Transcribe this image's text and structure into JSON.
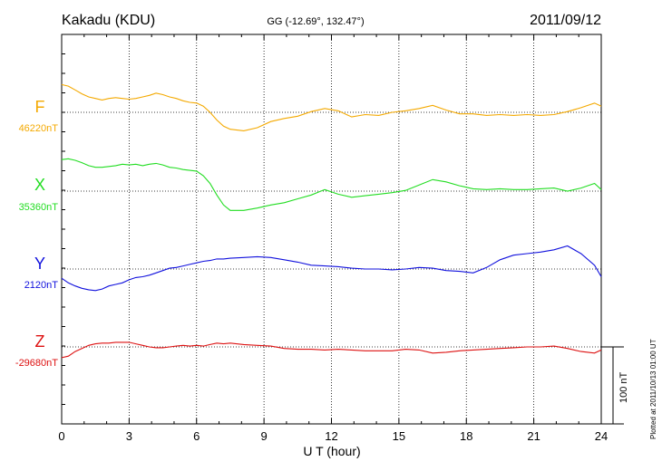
{
  "header": {
    "station": "Kakadu (KDU)",
    "coords": "GG (-12.69°, 132.47°)",
    "date": "2011/09/12"
  },
  "footer": {
    "plotted": "Plotted at 2011/10/13 01:00 UT"
  },
  "chart_data": {
    "type": "line",
    "title": "Kakadu (KDU)",
    "xlabel": "U T (hour)",
    "ylabel": "",
    "xlim": [
      0,
      24
    ],
    "xticks": [
      "0",
      "3",
      "6",
      "9",
      "12",
      "15",
      "18",
      "21",
      "24"
    ],
    "grid": true,
    "scale_bar": {
      "label": "100 nT",
      "value_nT": 100
    },
    "series": [
      {
        "name": "F",
        "baseline_label": "46220nT",
        "color": "#f4a900",
        "x": [
          0,
          0.3,
          0.6,
          0.9,
          1.2,
          1.5,
          1.8,
          2.1,
          2.4,
          2.7,
          3.0,
          3.3,
          3.6,
          3.9,
          4.2,
          4.5,
          4.8,
          5.1,
          5.4,
          5.7,
          6.0,
          6.3,
          6.6,
          6.9,
          7.2,
          7.5,
          8.1,
          8.7,
          9.3,
          9.9,
          10.5,
          11.1,
          11.7,
          12.3,
          12.9,
          13.5,
          14.1,
          14.7,
          15.3,
          15.9,
          16.5,
          17.1,
          17.7,
          18.3,
          18.9,
          19.5,
          20.1,
          20.7,
          21.3,
          21.9,
          22.5,
          23.1,
          23.7,
          24.0
        ],
        "values": [
          36,
          34,
          29,
          24,
          20,
          18,
          16,
          18,
          19,
          18,
          17,
          18,
          20,
          22,
          25,
          23,
          20,
          18,
          15,
          13,
          12,
          8,
          0,
          -10,
          -18,
          -22,
          -24,
          -20,
          -12,
          -8,
          -5,
          1,
          5,
          2,
          -6,
          -3,
          -4,
          0,
          2,
          5,
          9,
          3,
          -2,
          -2,
          -4,
          -3,
          -4,
          -3,
          -4,
          -3,
          1,
          6,
          12,
          8
        ]
      },
      {
        "name": "X",
        "baseline_label": "35360nT",
        "color": "#22dd22",
        "x": [
          0,
          0.3,
          0.6,
          0.9,
          1.2,
          1.5,
          1.8,
          2.1,
          2.4,
          2.7,
          3.0,
          3.3,
          3.6,
          3.9,
          4.2,
          4.5,
          4.8,
          5.1,
          5.4,
          5.7,
          6.0,
          6.3,
          6.6,
          6.9,
          7.2,
          7.5,
          8.1,
          8.7,
          9.3,
          9.9,
          10.5,
          11.1,
          11.7,
          12.3,
          12.9,
          13.5,
          14.1,
          14.7,
          15.3,
          15.9,
          16.5,
          17.1,
          17.7,
          18.3,
          18.9,
          19.5,
          20.1,
          20.7,
          21.3,
          21.9,
          22.5,
          23.1,
          23.7,
          24.0
        ],
        "values": [
          41,
          42,
          40,
          37,
          33,
          31,
          31,
          32,
          33,
          35,
          34,
          35,
          33,
          35,
          36,
          34,
          31,
          30,
          28,
          27,
          26,
          20,
          10,
          -5,
          -18,
          -25,
          -25,
          -22,
          -18,
          -15,
          -10,
          -5,
          2,
          -4,
          -8,
          -6,
          -4,
          -2,
          1,
          8,
          15,
          12,
          7,
          3,
          2,
          3,
          2,
          2,
          3,
          4,
          0,
          4,
          10,
          2
        ]
      },
      {
        "name": "Y",
        "baseline_label": "2120nT",
        "color": "#1111dd",
        "x": [
          0,
          0.3,
          0.6,
          0.9,
          1.2,
          1.5,
          1.8,
          2.1,
          2.4,
          2.7,
          3.0,
          3.3,
          3.6,
          3.9,
          4.2,
          4.5,
          4.8,
          5.1,
          5.4,
          5.7,
          6.0,
          6.3,
          6.6,
          6.9,
          7.2,
          7.5,
          8.1,
          8.7,
          9.3,
          9.9,
          10.5,
          11.1,
          11.7,
          12.3,
          12.9,
          13.5,
          14.1,
          14.7,
          15.3,
          15.9,
          16.5,
          17.1,
          17.7,
          18.3,
          18.9,
          19.5,
          20.1,
          20.7,
          21.3,
          21.9,
          22.5,
          23.1,
          23.7,
          24.0
        ],
        "values": [
          -12,
          -18,
          -22,
          -25,
          -27,
          -28,
          -26,
          -22,
          -20,
          -18,
          -14,
          -11,
          -10,
          -8,
          -5,
          -2,
          1,
          2,
          4,
          6,
          8,
          10,
          11,
          13,
          13,
          14,
          15,
          16,
          15,
          12,
          9,
          5,
          4,
          3,
          1,
          0,
          0,
          -1,
          0,
          2,
          1,
          -2,
          -3,
          -5,
          2,
          12,
          18,
          20,
          22,
          25,
          30,
          20,
          5,
          -10
        ]
      },
      {
        "name": "Z",
        "baseline_label": "-29680nT",
        "color": "#dd1111",
        "x": [
          0,
          0.3,
          0.6,
          0.9,
          1.2,
          1.5,
          1.8,
          2.1,
          2.4,
          2.7,
          3.0,
          3.3,
          3.6,
          3.9,
          4.2,
          4.5,
          4.8,
          5.1,
          5.4,
          5.7,
          6.0,
          6.3,
          6.6,
          6.9,
          7.2,
          7.5,
          8.1,
          8.7,
          9.3,
          9.9,
          10.5,
          11.1,
          11.7,
          12.3,
          12.9,
          13.5,
          14.1,
          14.7,
          15.3,
          15.9,
          16.5,
          17.1,
          17.7,
          18.3,
          18.9,
          19.5,
          20.1,
          20.7,
          21.3,
          21.9,
          22.5,
          23.1,
          23.7,
          24.0
        ],
        "values": [
          -14,
          -12,
          -6,
          -2,
          2,
          4,
          5,
          5,
          6,
          6,
          6,
          4,
          2,
          0,
          -1,
          -1,
          0,
          1,
          2,
          1,
          2,
          1,
          3,
          5,
          4,
          5,
          3,
          2,
          1,
          -2,
          -3,
          -3,
          -4,
          -3,
          -4,
          -5,
          -5,
          -5,
          -3,
          -4,
          -8,
          -7,
          -5,
          -4,
          -3,
          -2,
          -1,
          0,
          0,
          1,
          -2,
          -6,
          -8,
          -4
        ]
      }
    ]
  }
}
